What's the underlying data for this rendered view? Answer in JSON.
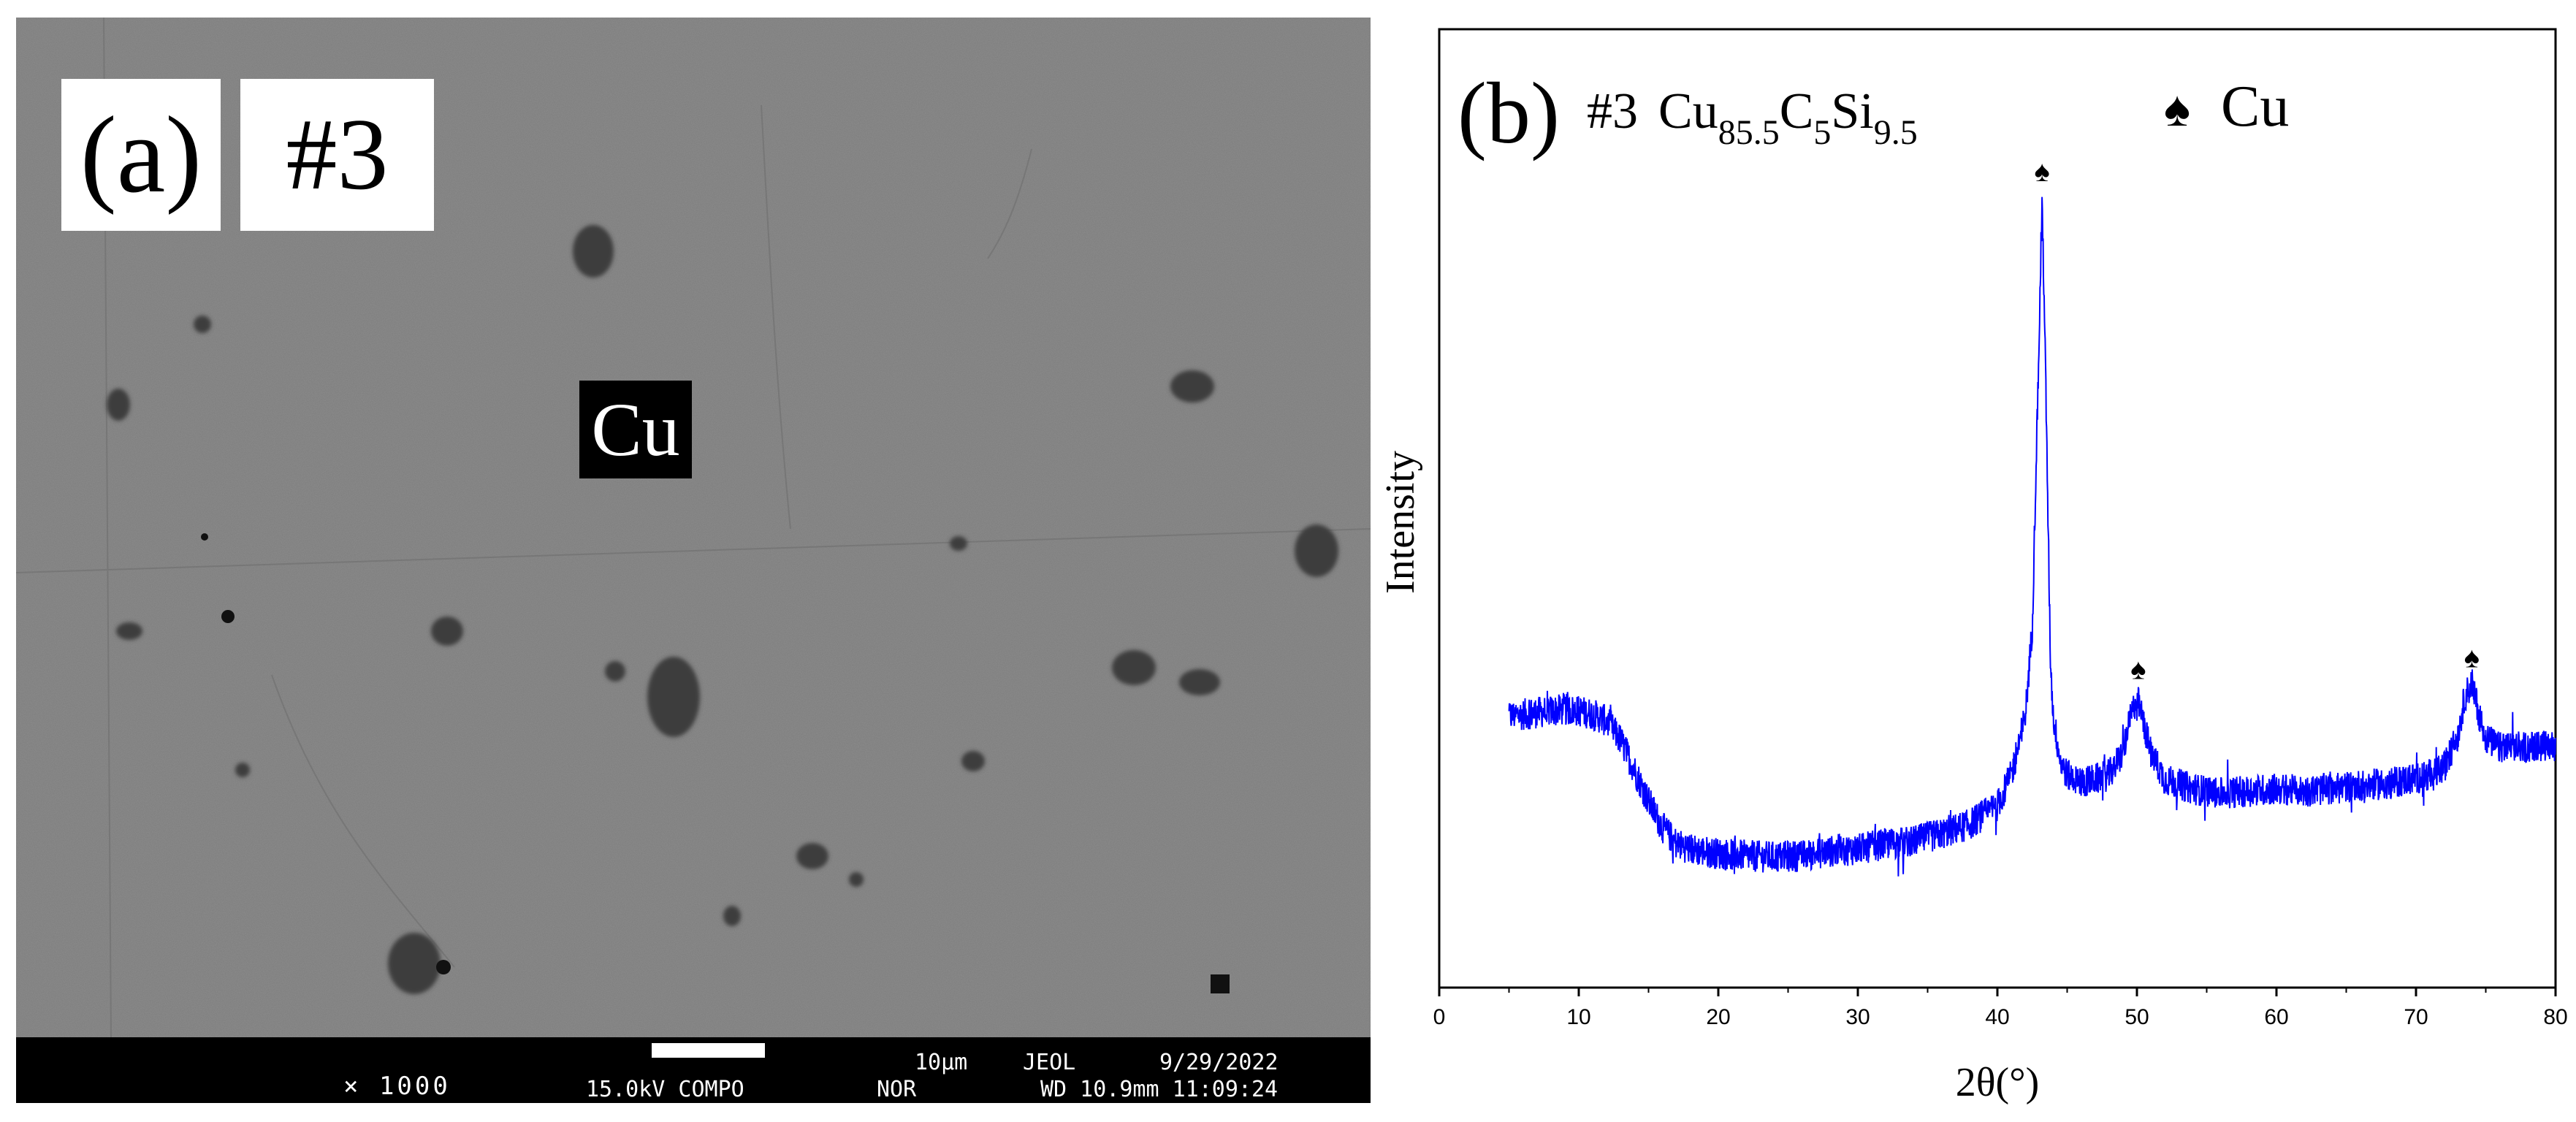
{
  "panel_a": {
    "label": "(a)",
    "sample_label": "#3",
    "phase_label": "Cu",
    "info_bar": {
      "magnification": "× 1000",
      "scale_text": "10µm",
      "instrument_brand": "JEOL",
      "date": "9/29/2022",
      "voltage_mode": "15.0kV COMPO",
      "mode2": "NOR",
      "wd_time": "WD 10.9mm 11:09:24"
    }
  },
  "panel_b": {
    "label": "(b)",
    "sample_label": "#3",
    "composition": {
      "base": "Cu",
      "sub1": "85.5",
      "el2": "C",
      "sub2": "5",
      "el3": "Si",
      "sub3": "9.5"
    },
    "legend_symbol": "♠",
    "legend_label": "Cu"
  },
  "chart_data": {
    "type": "line",
    "xlabel": "2θ(°)",
    "ylabel": "Intensity",
    "xlim": [
      0,
      80
    ],
    "xticks": [
      0,
      10,
      20,
      30,
      40,
      50,
      60,
      70,
      80
    ],
    "ylim": [
      0,
      100
    ],
    "y_tick_labels": false,
    "grid": false,
    "legend_position": "top-right",
    "line_color": "#0000ff",
    "noise_amplitude": 2.2,
    "series": [
      {
        "x": [
          5,
          7,
          9,
          10,
          11,
          12,
          13,
          14,
          15,
          16,
          17,
          18,
          20,
          22,
          24,
          26,
          28,
          30,
          32,
          34,
          36,
          38,
          39,
          40,
          41,
          42,
          42.5,
          43,
          43.2,
          43.4,
          43.8,
          44,
          44.5,
          45,
          46,
          47,
          48,
          49,
          49.5,
          50,
          50.5,
          51,
          52,
          54,
          56,
          58,
          60,
          62,
          64,
          66,
          68,
          70,
          71,
          72,
          73,
          73.5,
          74,
          74.5,
          75,
          76,
          78,
          80
        ],
        "y": [
          28.6,
          29.1,
          29.5,
          29.3,
          28.9,
          27.9,
          25.3,
          21.2,
          16.9,
          13.3,
          11.1,
          10.3,
          9.7,
          9.4,
          9.2,
          9.4,
          10.0,
          10.3,
          11.0,
          11.4,
          12.4,
          13.7,
          15.0,
          16.3,
          20.5,
          28.6,
          40.8,
          81.5,
          100,
          81.5,
          36.7,
          28.6,
          22.5,
          20.5,
          19.5,
          19.9,
          20.5,
          23.6,
          28.0,
          31.3,
          27.4,
          23.6,
          19.9,
          18.6,
          18.0,
          18.3,
          18.6,
          18.3,
          18.6,
          19.1,
          19.3,
          20.1,
          20.5,
          21.5,
          26.0,
          31.3,
          33.1,
          29.1,
          25.6,
          24.2,
          24.4,
          24.6
        ]
      }
    ],
    "peak_markers": [
      {
        "x": 43.2,
        "y": 100
      },
      {
        "x": 50.1,
        "y": 31.5
      },
      {
        "x": 74.0,
        "y": 33.1
      }
    ]
  }
}
